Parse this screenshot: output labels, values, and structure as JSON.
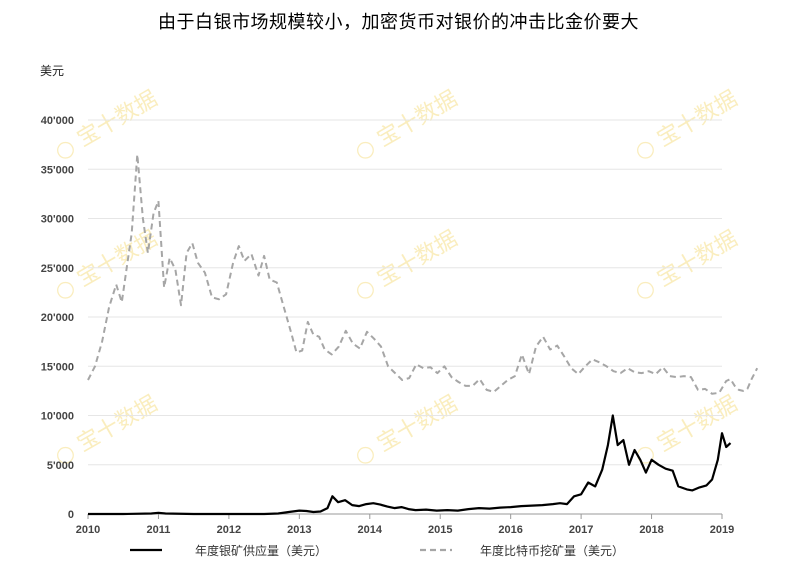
{
  "title": "由于白银市场规模较小，加密货币对银价的冲击比金价要大",
  "unit_label": "美元",
  "watermark_text": "宝十数据",
  "chart_data": {
    "type": "line",
    "title": "由于白银市场规模较小，加密货币对银价的冲击比金价要大",
    "ylabel": "美元",
    "ylim": [
      0,
      40000
    ],
    "xlim": [
      2010.0,
      2019.1
    ],
    "yticks": [
      0,
      5000,
      10000,
      15000,
      20000,
      25000,
      30000,
      35000,
      40000
    ],
    "ytick_labels": [
      "0",
      "5'000",
      "10'000",
      "15'000",
      "20'000",
      "25'000",
      "30'000",
      "35'000",
      "40'000"
    ],
    "xticks": [
      2010,
      2011,
      2012,
      2013,
      2014,
      2015,
      2016,
      2017,
      2018,
      2019
    ],
    "xtick_labels": [
      "2010",
      "2011",
      "2012",
      "2013",
      "2014",
      "2015",
      "2016",
      "2017",
      "2018",
      "2019"
    ],
    "grid": "horizontal",
    "legend_position": "bottom",
    "series": [
      {
        "name": "年度银矿供应量（美元）",
        "color": "#000000",
        "style": "solid",
        "points": [
          [
            2010.0,
            0
          ],
          [
            2010.5,
            0
          ],
          [
            2010.9,
            50
          ],
          [
            2011.0,
            120
          ],
          [
            2011.1,
            50
          ],
          [
            2011.5,
            0
          ],
          [
            2012.0,
            0
          ],
          [
            2012.5,
            0
          ],
          [
            2012.7,
            50
          ],
          [
            2012.85,
            200
          ],
          [
            2013.0,
            350
          ],
          [
            2013.1,
            300
          ],
          [
            2013.2,
            200
          ],
          [
            2013.3,
            250
          ],
          [
            2013.4,
            600
          ],
          [
            2013.47,
            1800
          ],
          [
            2013.55,
            1200
          ],
          [
            2013.65,
            1400
          ],
          [
            2013.75,
            900
          ],
          [
            2013.85,
            800
          ],
          [
            2013.95,
            1000
          ],
          [
            2014.05,
            1100
          ],
          [
            2014.15,
            950
          ],
          [
            2014.25,
            750
          ],
          [
            2014.35,
            600
          ],
          [
            2014.45,
            700
          ],
          [
            2014.55,
            500
          ],
          [
            2014.65,
            400
          ],
          [
            2014.8,
            450
          ],
          [
            2014.95,
            350
          ],
          [
            2015.1,
            400
          ],
          [
            2015.25,
            350
          ],
          [
            2015.4,
            500
          ],
          [
            2015.55,
            600
          ],
          [
            2015.7,
            550
          ],
          [
            2015.85,
            650
          ],
          [
            2016.0,
            700
          ],
          [
            2016.15,
            800
          ],
          [
            2016.3,
            850
          ],
          [
            2016.45,
            900
          ],
          [
            2016.6,
            1000
          ],
          [
            2016.7,
            1100
          ],
          [
            2016.8,
            1000
          ],
          [
            2016.9,
            1800
          ],
          [
            2017.0,
            2000
          ],
          [
            2017.1,
            3200
          ],
          [
            2017.2,
            2800
          ],
          [
            2017.3,
            4500
          ],
          [
            2017.38,
            7000
          ],
          [
            2017.45,
            10000
          ],
          [
            2017.52,
            7000
          ],
          [
            2017.6,
            7500
          ],
          [
            2017.68,
            5000
          ],
          [
            2017.76,
            6500
          ],
          [
            2017.84,
            5500
          ],
          [
            2017.92,
            4200
          ],
          [
            2018.0,
            5500
          ],
          [
            2018.1,
            5000
          ],
          [
            2018.2,
            4600
          ],
          [
            2018.3,
            4400
          ],
          [
            2018.38,
            2800
          ],
          [
            2018.5,
            2500
          ],
          [
            2018.58,
            2400
          ],
          [
            2018.68,
            2700
          ],
          [
            2018.78,
            2900
          ],
          [
            2018.86,
            3500
          ],
          [
            2018.94,
            5500
          ],
          [
            2019.0,
            8200
          ],
          [
            2019.06,
            6800
          ],
          [
            2019.12,
            7200
          ]
        ]
      },
      {
        "name": "年度比特币挖矿量（美元）",
        "color": "#a6a6a6",
        "style": "dashed",
        "points": [
          [
            2010.0,
            13600
          ],
          [
            2010.1,
            15000
          ],
          [
            2010.2,
            17500
          ],
          [
            2010.3,
            21000
          ],
          [
            2010.4,
            23300
          ],
          [
            2010.48,
            21500
          ],
          [
            2010.55,
            25000
          ],
          [
            2010.62,
            28500
          ],
          [
            2010.7,
            36500
          ],
          [
            2010.78,
            30000
          ],
          [
            2010.85,
            26500
          ],
          [
            2010.93,
            30500
          ],
          [
            2011.0,
            31800
          ],
          [
            2011.08,
            23000
          ],
          [
            2011.16,
            26000
          ],
          [
            2011.24,
            24800
          ],
          [
            2011.32,
            21200
          ],
          [
            2011.4,
            26500
          ],
          [
            2011.48,
            27500
          ],
          [
            2011.56,
            25500
          ],
          [
            2011.66,
            24500
          ],
          [
            2011.76,
            22000
          ],
          [
            2011.86,
            21800
          ],
          [
            2011.96,
            22300
          ],
          [
            2012.06,
            25500
          ],
          [
            2012.14,
            27200
          ],
          [
            2012.22,
            25700
          ],
          [
            2012.32,
            26400
          ],
          [
            2012.42,
            24200
          ],
          [
            2012.5,
            26200
          ],
          [
            2012.58,
            23800
          ],
          [
            2012.68,
            23500
          ],
          [
            2012.78,
            21000
          ],
          [
            2012.88,
            18500
          ],
          [
            2012.96,
            16400
          ],
          [
            2013.04,
            16600
          ],
          [
            2013.12,
            19500
          ],
          [
            2013.2,
            18200
          ],
          [
            2013.28,
            18000
          ],
          [
            2013.36,
            16700
          ],
          [
            2013.46,
            16200
          ],
          [
            2013.56,
            17000
          ],
          [
            2013.66,
            18600
          ],
          [
            2013.76,
            17300
          ],
          [
            2013.86,
            16800
          ],
          [
            2013.96,
            18500
          ],
          [
            2014.06,
            17800
          ],
          [
            2014.16,
            17000
          ],
          [
            2014.26,
            15000
          ],
          [
            2014.36,
            14300
          ],
          [
            2014.46,
            13600
          ],
          [
            2014.56,
            13800
          ],
          [
            2014.66,
            15200
          ],
          [
            2014.76,
            14800
          ],
          [
            2014.86,
            14900
          ],
          [
            2014.96,
            14300
          ],
          [
            2015.06,
            15000
          ],
          [
            2015.16,
            13900
          ],
          [
            2015.26,
            13400
          ],
          [
            2015.36,
            13000
          ],
          [
            2015.46,
            13000
          ],
          [
            2015.56,
            13700
          ],
          [
            2015.66,
            12600
          ],
          [
            2015.76,
            12400
          ],
          [
            2015.86,
            13000
          ],
          [
            2015.96,
            13600
          ],
          [
            2016.06,
            14000
          ],
          [
            2016.16,
            16200
          ],
          [
            2016.26,
            14200
          ],
          [
            2016.36,
            17000
          ],
          [
            2016.46,
            18000
          ],
          [
            2016.56,
            16700
          ],
          [
            2016.66,
            17100
          ],
          [
            2016.76,
            16000
          ],
          [
            2016.86,
            14800
          ],
          [
            2016.96,
            14200
          ],
          [
            2017.06,
            15000
          ],
          [
            2017.16,
            15700
          ],
          [
            2017.26,
            15400
          ],
          [
            2017.36,
            15000
          ],
          [
            2017.46,
            14500
          ],
          [
            2017.56,
            14300
          ],
          [
            2017.66,
            14800
          ],
          [
            2017.76,
            14400
          ],
          [
            2017.86,
            14300
          ],
          [
            2017.96,
            14500
          ],
          [
            2018.06,
            14200
          ],
          [
            2018.16,
            14900
          ],
          [
            2018.26,
            14000
          ],
          [
            2018.36,
            13900
          ],
          [
            2018.46,
            14000
          ],
          [
            2018.56,
            13900
          ],
          [
            2018.66,
            12600
          ],
          [
            2018.76,
            12700
          ],
          [
            2018.86,
            12200
          ],
          [
            2018.96,
            12300
          ],
          [
            2019.06,
            13500
          ],
          [
            2019.12,
            13700
          ],
          [
            2019.18,
            13000
          ],
          [
            2019.24,
            12600
          ],
          [
            2019.3,
            12500
          ],
          [
            2019.36,
            12700
          ],
          [
            2019.42,
            13700
          ],
          [
            2019.5,
            14800
          ]
        ]
      }
    ]
  }
}
